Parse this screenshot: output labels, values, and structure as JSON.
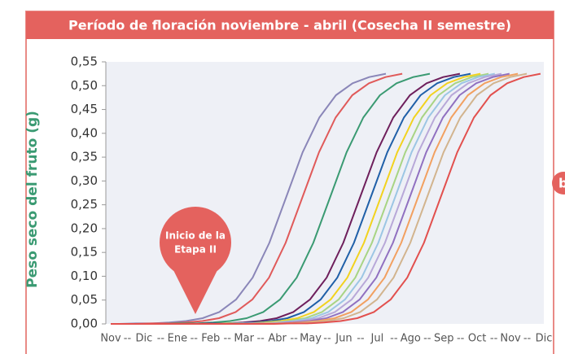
{
  "chart_data": {
    "type": "line",
    "title": "Período de floración noviembre - abril (Cosecha II semestre)",
    "y_axis_label": "Peso seco del fruto (g)",
    "categories": [
      "Nov",
      "Dic",
      "Ene",
      "Feb",
      "Mar",
      "Abr",
      "May",
      "Jun",
      "Jul",
      "Ago",
      "Sep",
      "Oct",
      "Nov",
      "Dic"
    ],
    "category_separator": "--",
    "xlim": [
      0,
      13
    ],
    "ylim": [
      0,
      0.55
    ],
    "yticks": [
      {
        "value": 0,
        "label": "0,00"
      },
      {
        "value": 0.05,
        "label": "0,05"
      },
      {
        "value": 0.1,
        "label": "0,10"
      },
      {
        "value": 0.15,
        "label": "0,15"
      },
      {
        "value": 0.2,
        "label": "0,20"
      },
      {
        "value": 0.25,
        "label": "0,25"
      },
      {
        "value": 0.3,
        "label": "0,30"
      },
      {
        "value": 0.35,
        "label": "0,35"
      },
      {
        "value": 0.4,
        "label": "0,40"
      },
      {
        "value": 0.45,
        "label": "0,45"
      },
      {
        "value": 0.5,
        "label": "0,50"
      },
      {
        "value": 0.55,
        "label": "0,55"
      }
    ],
    "grid": false,
    "annotation": [
      "Inicio de la",
      "Etapa II"
    ],
    "side_badge": "b",
    "series": [
      {
        "color": "#8a86b8",
        "x": [
          0,
          0.26,
          0.76,
          1.26,
          1.76,
          2.26,
          2.76,
          3.26,
          3.76,
          4.26,
          4.76,
          5.26,
          5.76,
          6.26,
          6.76,
          7.26,
          7.76,
          8.26
        ],
        "values": [
          0,
          0,
          0.001,
          0.001,
          0.003,
          0.006,
          0.012,
          0.025,
          0.051,
          0.097,
          0.17,
          0.265,
          0.36,
          0.433,
          0.48,
          0.505,
          0.518,
          0.525
        ]
      },
      {
        "color": "#e05a5a",
        "x": [
          0,
          0.75,
          1.25,
          1.75,
          2.25,
          2.75,
          3.25,
          3.75,
          4.25,
          4.75,
          5.25,
          5.75,
          6.25,
          6.75,
          7.25,
          7.75,
          8.25,
          8.75
        ],
        "values": [
          0,
          0,
          0.001,
          0.001,
          0.003,
          0.006,
          0.012,
          0.025,
          0.051,
          0.097,
          0.17,
          0.265,
          0.36,
          0.433,
          0.48,
          0.505,
          0.518,
          0.525
        ]
      },
      {
        "color": "#3a9a72",
        "x": [
          0,
          1.58,
          2.08,
          2.58,
          3.08,
          3.58,
          4.08,
          4.58,
          5.08,
          5.58,
          6.08,
          6.58,
          7.08,
          7.58,
          8.08,
          8.58,
          9.08,
          9.58
        ],
        "values": [
          0,
          0,
          0.001,
          0.001,
          0.003,
          0.006,
          0.012,
          0.025,
          0.051,
          0.097,
          0.17,
          0.265,
          0.36,
          0.433,
          0.48,
          0.505,
          0.518,
          0.525
        ]
      },
      {
        "color": "#6e1f5c",
        "x": [
          0,
          2.48,
          2.98,
          3.48,
          3.98,
          4.48,
          4.98,
          5.48,
          5.98,
          6.48,
          6.98,
          7.48,
          7.98,
          8.48,
          8.98,
          9.48,
          9.98,
          10.48
        ],
        "values": [
          0,
          0,
          0.001,
          0.001,
          0.003,
          0.006,
          0.012,
          0.025,
          0.051,
          0.097,
          0.17,
          0.265,
          0.36,
          0.433,
          0.48,
          0.505,
          0.518,
          0.525
        ]
      },
      {
        "color": "#1f5fa8",
        "x": [
          0,
          2.8,
          3.3,
          3.8,
          4.3,
          4.8,
          5.3,
          5.8,
          6.3,
          6.8,
          7.3,
          7.8,
          8.3,
          8.8,
          9.3,
          9.8,
          10.3,
          10.8
        ],
        "values": [
          0,
          0,
          0.001,
          0.001,
          0.003,
          0.006,
          0.012,
          0.025,
          0.051,
          0.097,
          0.17,
          0.265,
          0.36,
          0.433,
          0.48,
          0.505,
          0.518,
          0.525
        ]
      },
      {
        "color": "#f2d21e",
        "x": [
          0,
          3.1,
          3.6,
          4.1,
          4.6,
          5.1,
          5.6,
          6.1,
          6.6,
          7.1,
          7.6,
          8.1,
          8.6,
          9.1,
          9.6,
          10.1,
          10.6,
          11.1
        ],
        "values": [
          0,
          0,
          0.001,
          0.001,
          0.003,
          0.006,
          0.012,
          0.025,
          0.051,
          0.097,
          0.17,
          0.265,
          0.36,
          0.433,
          0.48,
          0.505,
          0.518,
          0.525
        ]
      },
      {
        "color": "#a8d484",
        "x": [
          0,
          3.34,
          3.84,
          4.34,
          4.84,
          5.34,
          5.84,
          6.34,
          6.84,
          7.34,
          7.84,
          8.34,
          8.84,
          9.34,
          9.84,
          10.34,
          10.84,
          11.34
        ],
        "values": [
          0,
          0,
          0.001,
          0.001,
          0.003,
          0.006,
          0.012,
          0.025,
          0.051,
          0.097,
          0.17,
          0.265,
          0.36,
          0.433,
          0.48,
          0.505,
          0.518,
          0.525
        ]
      },
      {
        "color": "#9cc6e4",
        "x": [
          0,
          3.53,
          4.03,
          4.53,
          5.03,
          5.53,
          6.03,
          6.53,
          7.03,
          7.53,
          8.03,
          8.53,
          9.03,
          9.53,
          10.03,
          10.53,
          11.03,
          11.53
        ],
        "values": [
          0,
          0,
          0.001,
          0.001,
          0.003,
          0.006,
          0.012,
          0.025,
          0.051,
          0.097,
          0.17,
          0.265,
          0.36,
          0.433,
          0.48,
          0.505,
          0.518,
          0.525
        ]
      },
      {
        "color": "#b8a8d8",
        "x": [
          0,
          3.73,
          4.23,
          4.73,
          5.23,
          5.73,
          6.23,
          6.73,
          7.23,
          7.73,
          8.23,
          8.73,
          9.23,
          9.73,
          10.23,
          10.73,
          11.23,
          11.73
        ],
        "values": [
          0,
          0,
          0.001,
          0.001,
          0.003,
          0.006,
          0.012,
          0.025,
          0.051,
          0.097,
          0.17,
          0.265,
          0.36,
          0.433,
          0.48,
          0.505,
          0.518,
          0.525
        ]
      },
      {
        "color": "#9070c0",
        "x": [
          0,
          3.97,
          4.47,
          4.97,
          5.47,
          5.97,
          6.47,
          6.97,
          7.47,
          7.97,
          8.47,
          8.97,
          9.47,
          9.97,
          10.47,
          10.97,
          11.47,
          11.97
        ],
        "values": [
          0,
          0,
          0.001,
          0.001,
          0.003,
          0.006,
          0.012,
          0.025,
          0.051,
          0.097,
          0.17,
          0.265,
          0.36,
          0.433,
          0.48,
          0.505,
          0.518,
          0.525
        ]
      },
      {
        "color": "#f2a060",
        "x": [
          0,
          4.22,
          4.72,
          5.22,
          5.72,
          6.22,
          6.72,
          7.22,
          7.72,
          8.22,
          8.72,
          9.22,
          9.72,
          10.22,
          10.72,
          11.22,
          11.72,
          12.22
        ],
        "values": [
          0,
          0,
          0.001,
          0.001,
          0.003,
          0.006,
          0.012,
          0.025,
          0.051,
          0.097,
          0.17,
          0.265,
          0.36,
          0.433,
          0.48,
          0.505,
          0.518,
          0.525
        ]
      },
      {
        "color": "#d2b48e",
        "x": [
          0,
          4.49,
          4.99,
          5.49,
          5.99,
          6.49,
          6.99,
          7.49,
          7.99,
          8.49,
          8.99,
          9.49,
          9.99,
          10.49,
          10.99,
          11.49,
          11.99,
          12.49
        ],
        "values": [
          0,
          0,
          0.001,
          0.001,
          0.003,
          0.006,
          0.012,
          0.025,
          0.051,
          0.097,
          0.17,
          0.265,
          0.36,
          0.433,
          0.48,
          0.505,
          0.518,
          0.525
        ]
      },
      {
        "color": "#e2504e",
        "x": [
          0,
          4.9,
          5.4,
          5.9,
          6.4,
          6.9,
          7.4,
          7.9,
          8.4,
          8.9,
          9.4,
          9.9,
          10.4,
          10.9,
          11.4,
          11.9,
          12.4,
          12.9
        ],
        "values": [
          0,
          0,
          0.001,
          0.001,
          0.003,
          0.006,
          0.012,
          0.025,
          0.051,
          0.097,
          0.17,
          0.265,
          0.36,
          0.433,
          0.48,
          0.505,
          0.518,
          0.525
        ]
      }
    ]
  }
}
